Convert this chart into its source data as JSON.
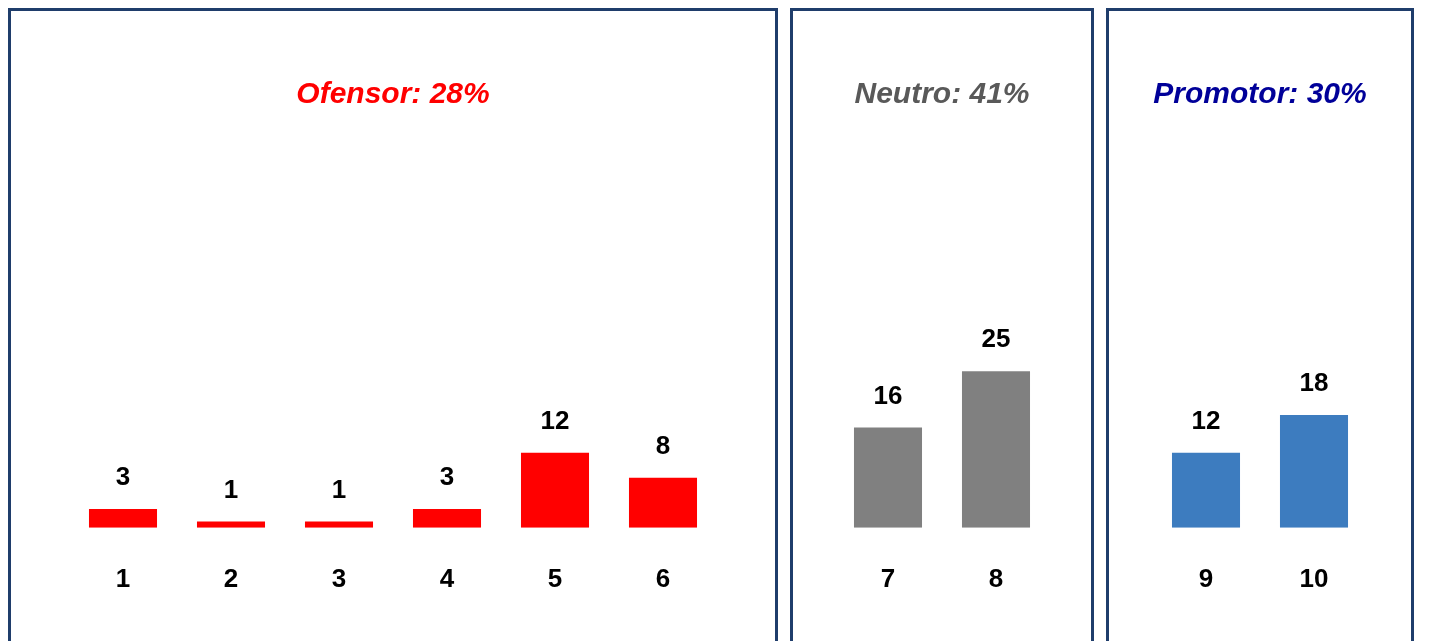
{
  "chart_data": [
    {
      "type": "bar",
      "title": "Ofensor: 28%",
      "categories": [
        "1",
        "2",
        "3",
        "4",
        "5",
        "6"
      ],
      "values": [
        3,
        1,
        1,
        3,
        12,
        8
      ],
      "color": "#ff0000",
      "data_labels": true,
      "tick_labels": "x"
    },
    {
      "type": "bar",
      "title": "Neutro: 41%",
      "categories": [
        "7",
        "8"
      ],
      "values": [
        16,
        25
      ],
      "color": "#808080",
      "data_labels": true,
      "tick_labels": "x"
    },
    {
      "type": "bar",
      "title": "Promotor: 30%",
      "categories": [
        "9",
        "10"
      ],
      "values": [
        12,
        18
      ],
      "color": "#3d7cbf",
      "data_labels": true,
      "tick_labels": "x"
    }
  ]
}
